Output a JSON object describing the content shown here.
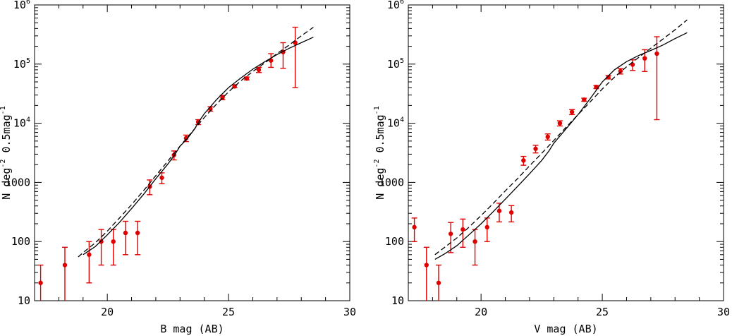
{
  "chart_data": [
    {
      "type": "scatter",
      "xlabel": "B mag (AB)",
      "ylabel": "N deg",
      "ylabel_parts": [
        "N deg",
        "-2",
        "0.5mag",
        "-1"
      ],
      "xlim": [
        17,
        30
      ],
      "ylim": [
        10,
        1000000
      ],
      "yscale": "log",
      "grid": false,
      "xticks": [
        20,
        25,
        30
      ],
      "yticks": [
        10,
        100,
        1000,
        10000,
        100000,
        1000000
      ],
      "ytick_labels": [
        {
          "base": "10",
          "exp": ""
        },
        {
          "base": "100",
          "exp": ""
        },
        {
          "base": "1000",
          "exp": ""
        },
        {
          "base": "10",
          "exp": "4"
        },
        {
          "base": "10",
          "exp": "5"
        },
        {
          "base": "10",
          "exp": "6"
        }
      ],
      "series": [
        {
          "style": "points",
          "color": "#e00000",
          "x": [
            17.25,
            18.25,
            19.25,
            19.75,
            20.25,
            20.75,
            21.25,
            21.75,
            22.25,
            22.75,
            23.25,
            23.75,
            24.25,
            24.75,
            25.25,
            25.75,
            26.25,
            26.75,
            27.25,
            27.75
          ],
          "y": [
            20,
            40,
            60,
            100,
            100,
            140,
            140,
            850,
            1200,
            2900,
            5600,
            10500,
            17500,
            27000,
            42000,
            57000,
            80000,
            115000,
            160000,
            230000
          ],
          "ylow": [
            10,
            10,
            20,
            40,
            40,
            60,
            60,
            620,
            950,
            2400,
            4900,
            9500,
            16000,
            25000,
            40000,
            54000,
            72000,
            88000,
            85000,
            40000
          ],
          "yhigh": [
            40,
            80,
            100,
            160,
            160,
            220,
            220,
            1100,
            1450,
            3400,
            6300,
            11500,
            19000,
            29500,
            44500,
            60500,
            88000,
            150000,
            230000,
            420000
          ]
        },
        {
          "style": "solid",
          "color": "#000000",
          "x": [
            19.0,
            19.5,
            20.0,
            20.5,
            21.0,
            21.5,
            22.0,
            22.5,
            22.8,
            23.0,
            23.3,
            23.6,
            23.8,
            24.0,
            24.5,
            25.0,
            25.5,
            26.0,
            26.5,
            27.0,
            27.5,
            28.0,
            28.5
          ],
          "y": [
            60,
            82,
            130,
            210,
            360,
            630,
            1150,
            2050,
            3000,
            4100,
            5500,
            8000,
            11000,
            14500,
            25000,
            40000,
            58000,
            82000,
            110000,
            145000,
            185000,
            230000,
            285000
          ]
        },
        {
          "style": "dashed",
          "color": "#000000",
          "x": [
            18.8,
            19.0,
            19.5,
            20.0,
            20.5,
            21.0,
            21.5,
            22.0,
            22.5,
            23.0,
            23.5,
            24.0,
            24.5,
            25.0,
            25.5,
            26.0,
            26.5,
            27.0,
            27.5,
            28.0,
            28.5
          ],
          "y": [
            55,
            65,
            95,
            150,
            250,
            420,
            730,
            1300,
            2300,
            4100,
            7200,
            12500,
            21000,
            34000,
            52000,
            75000,
            105000,
            150000,
            210000,
            300000,
            420000
          ]
        }
      ]
    },
    {
      "type": "scatter",
      "xlabel": "V mag (AB)",
      "ylabel": "N deg",
      "ylabel_parts": [
        "N deg",
        "-2",
        "0.5mag",
        "-1"
      ],
      "xlim": [
        17,
        30
      ],
      "ylim": [
        10,
        1000000
      ],
      "yscale": "log",
      "grid": false,
      "xticks": [
        20,
        25,
        30
      ],
      "yticks": [
        10,
        100,
        1000,
        10000,
        100000,
        1000000
      ],
      "ytick_labels": [
        {
          "base": "10",
          "exp": ""
        },
        {
          "base": "100",
          "exp": ""
        },
        {
          "base": "1000",
          "exp": ""
        },
        {
          "base": "10",
          "exp": "4"
        },
        {
          "base": "10",
          "exp": "5"
        },
        {
          "base": "10",
          "exp": "6"
        }
      ],
      "series": [
        {
          "style": "points",
          "color": "#e00000",
          "x": [
            17.25,
            17.75,
            18.25,
            18.75,
            19.25,
            19.75,
            20.25,
            20.75,
            21.25,
            21.75,
            22.25,
            22.75,
            23.25,
            23.75,
            24.25,
            24.75,
            25.25,
            25.75,
            26.25,
            26.75,
            27.25
          ],
          "y": [
            175,
            40,
            20,
            135,
            160,
            100,
            175,
            330,
            310,
            2350,
            3700,
            5900,
            10000,
            15500,
            25000,
            41000,
            60000,
            76000,
            98000,
            125000,
            150000
          ],
          "ylow": [
            100,
            10,
            10,
            65,
            80,
            40,
            100,
            215,
            215,
            1950,
            3150,
            5200,
            9000,
            14000,
            23500,
            38500,
            56000,
            68000,
            78000,
            75000,
            11500
          ],
          "yhigh": [
            250,
            80,
            40,
            210,
            240,
            160,
            250,
            445,
            405,
            2750,
            4250,
            6600,
            11000,
            17000,
            26500,
            43500,
            64000,
            84000,
            118000,
            175000,
            290000
          ]
        },
        {
          "style": "solid",
          "color": "#000000",
          "x": [
            18.1,
            18.5,
            19.0,
            19.5,
            20.0,
            20.5,
            21.0,
            21.5,
            22.0,
            22.5,
            22.8,
            23.0,
            23.5,
            24.0,
            24.5,
            25.0,
            25.5,
            26.0,
            26.5,
            27.0,
            27.5,
            28.0,
            28.5
          ],
          "y": [
            50,
            62,
            85,
            130,
            200,
            320,
            520,
            850,
            1400,
            2350,
            3400,
            4600,
            8000,
            14000,
            26000,
            50000,
            80000,
            110000,
            140000,
            170000,
            210000,
            270000,
            340000
          ]
        },
        {
          "style": "dashed",
          "color": "#000000",
          "x": [
            18.1,
            18.5,
            19.0,
            19.5,
            20.0,
            20.5,
            21.0,
            21.5,
            22.0,
            22.5,
            23.0,
            23.5,
            24.0,
            24.5,
            25.0,
            25.5,
            26.0,
            26.5,
            27.0,
            27.5,
            28.0,
            28.5
          ],
          "y": [
            60,
            80,
            115,
            175,
            275,
            440,
            720,
            1150,
            1900,
            3100,
            5100,
            8500,
            14000,
            23000,
            38000,
            60000,
            90000,
            130000,
            185000,
            265000,
            380000,
            560000
          ]
        }
      ]
    }
  ]
}
